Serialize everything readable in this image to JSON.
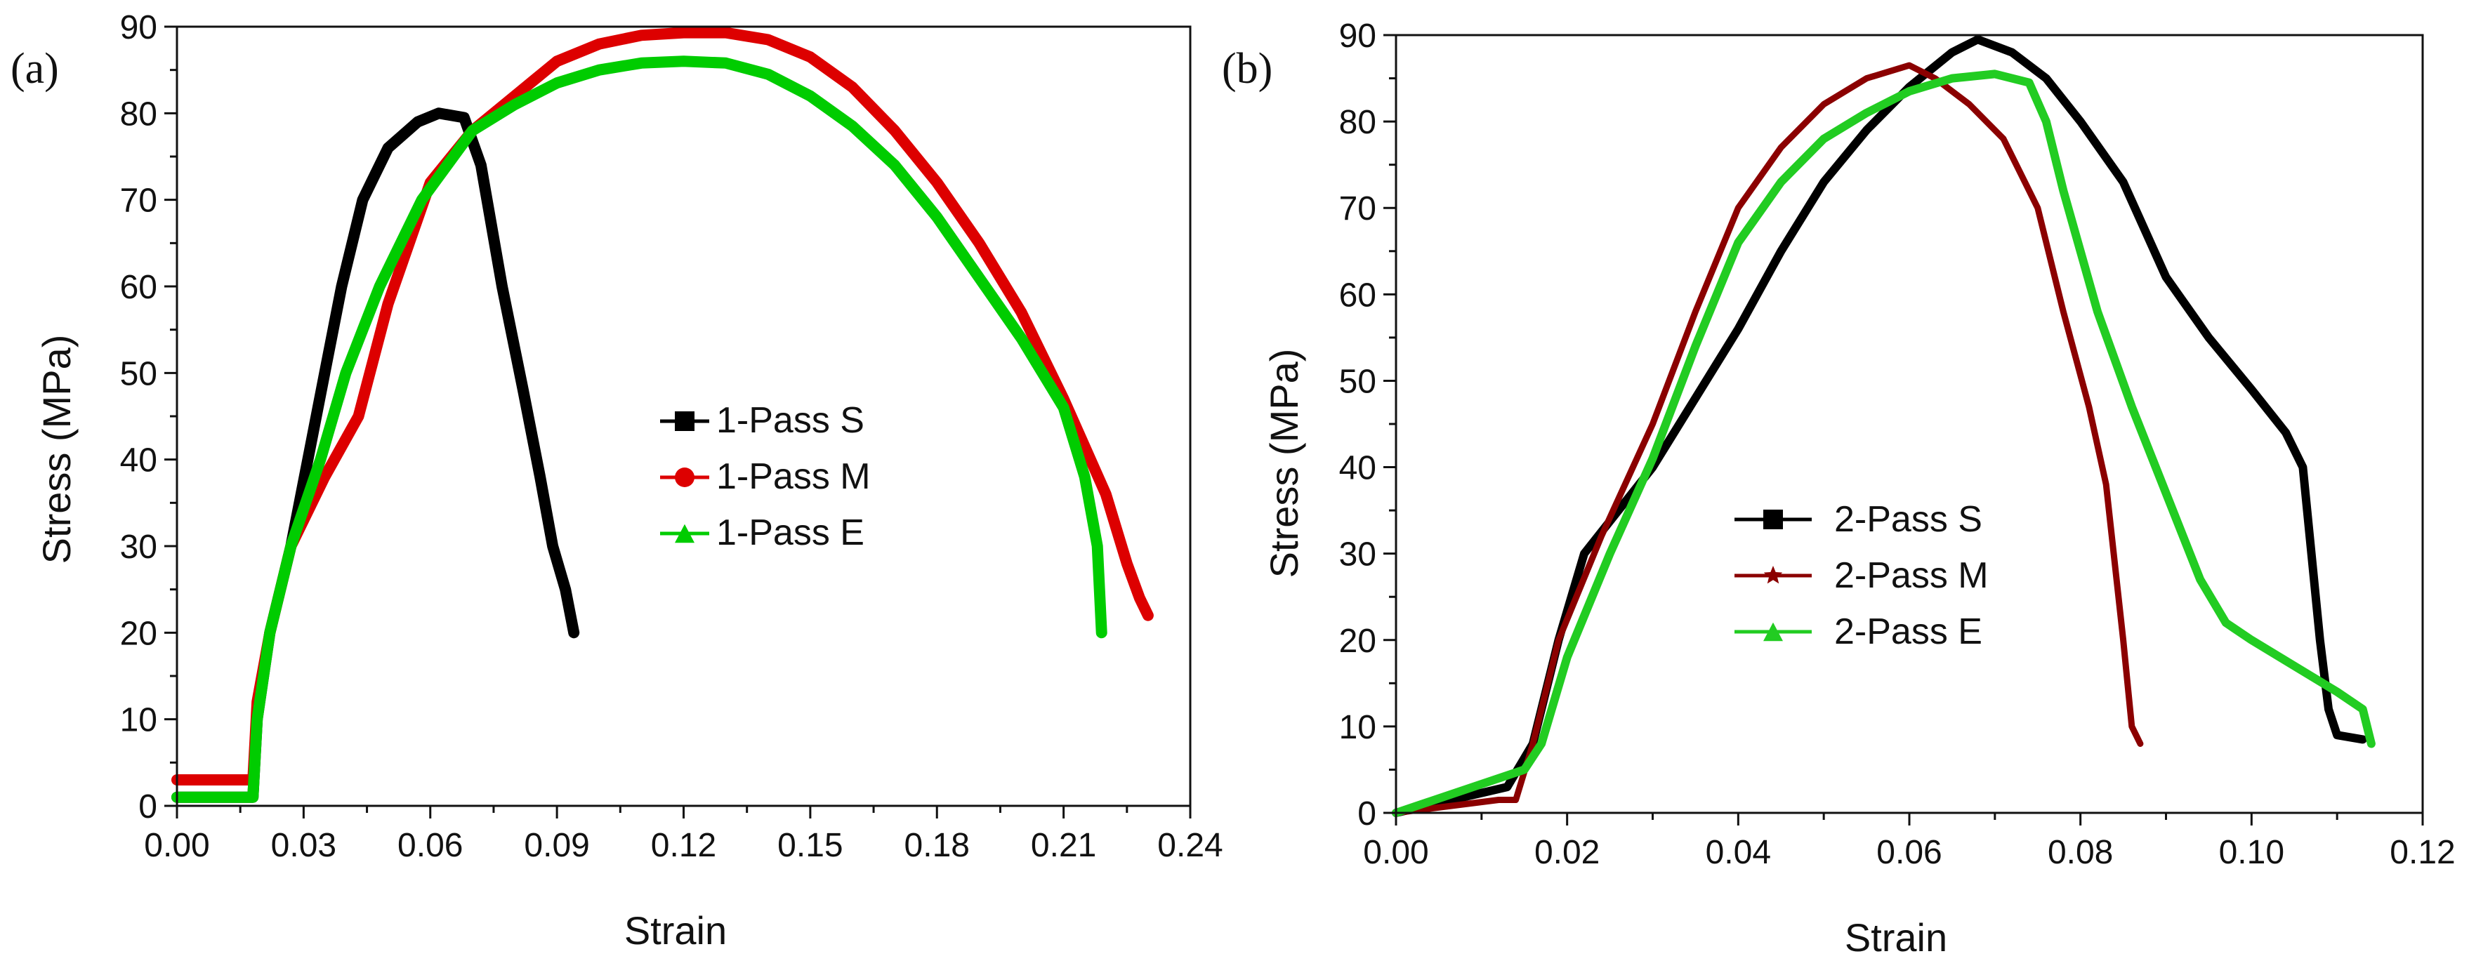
{
  "chart_data": [
    {
      "type": "line",
      "panel_label": "(a)",
      "xlabel": "Strain",
      "ylabel": "Stress (MPa)",
      "xlim": [
        0,
        0.24
      ],
      "ylim": [
        0,
        90
      ],
      "xticks": [
        "0.00",
        "0.03",
        "0.06",
        "0.09",
        "0.12",
        "0.15",
        "0.18",
        "0.21",
        "0.24"
      ],
      "yticks": [
        "0",
        "10",
        "20",
        "30",
        "40",
        "50",
        "60",
        "70",
        "80",
        "90"
      ],
      "legend_position": "center-right",
      "series": [
        {
          "name": "1-Pass S",
          "color": "#000000",
          "marker": "square",
          "points": [
            [
              0,
              1
            ],
            [
              0.018,
              1
            ],
            [
              0.019,
              10
            ],
            [
              0.022,
              20
            ],
            [
              0.027,
              30
            ],
            [
              0.031,
              40
            ],
            [
              0.035,
              50
            ],
            [
              0.039,
              60
            ],
            [
              0.044,
              70
            ],
            [
              0.05,
              76
            ],
            [
              0.057,
              79
            ],
            [
              0.062,
              80
            ],
            [
              0.068,
              79.5
            ],
            [
              0.072,
              74
            ],
            [
              0.077,
              60
            ],
            [
              0.082,
              48
            ],
            [
              0.086,
              38
            ],
            [
              0.089,
              30
            ],
            [
              0.092,
              25
            ],
            [
              0.094,
              20
            ]
          ]
        },
        {
          "name": "1-Pass M",
          "color": "#dd0000",
          "marker": "circle",
          "points": [
            [
              0,
              3
            ],
            [
              0.018,
              3
            ],
            [
              0.019,
              12
            ],
            [
              0.022,
              20
            ],
            [
              0.027,
              30
            ],
            [
              0.035,
              38
            ],
            [
              0.043,
              45
            ],
            [
              0.05,
              58
            ],
            [
              0.06,
              72
            ],
            [
              0.07,
              78
            ],
            [
              0.08,
              82
            ],
            [
              0.09,
              86
            ],
            [
              0.1,
              88
            ],
            [
              0.11,
              89
            ],
            [
              0.12,
              89.3
            ],
            [
              0.13,
              89.3
            ],
            [
              0.14,
              88.5
            ],
            [
              0.15,
              86.5
            ],
            [
              0.16,
              83
            ],
            [
              0.17,
              78
            ],
            [
              0.18,
              72
            ],
            [
              0.19,
              65
            ],
            [
              0.2,
              57
            ],
            [
              0.21,
              47
            ],
            [
              0.22,
              36
            ],
            [
              0.225,
              28
            ],
            [
              0.228,
              24
            ],
            [
              0.23,
              22
            ]
          ]
        },
        {
          "name": "1-Pass E",
          "color": "#00cc00",
          "marker": "triangle",
          "points": [
            [
              0,
              1
            ],
            [
              0.018,
              1
            ],
            [
              0.019,
              10
            ],
            [
              0.022,
              20
            ],
            [
              0.027,
              30
            ],
            [
              0.034,
              40
            ],
            [
              0.04,
              50
            ],
            [
              0.048,
              60
            ],
            [
              0.058,
              70
            ],
            [
              0.07,
              78
            ],
            [
              0.08,
              81
            ],
            [
              0.09,
              83.5
            ],
            [
              0.1,
              85
            ],
            [
              0.11,
              85.8
            ],
            [
              0.12,
              86
            ],
            [
              0.13,
              85.8
            ],
            [
              0.14,
              84.5
            ],
            [
              0.15,
              82
            ],
            [
              0.16,
              78.5
            ],
            [
              0.17,
              74
            ],
            [
              0.18,
              68
            ],
            [
              0.19,
              61
            ],
            [
              0.2,
              54
            ],
            [
              0.21,
              46
            ],
            [
              0.215,
              38
            ],
            [
              0.218,
              30
            ],
            [
              0.219,
              20
            ]
          ]
        }
      ]
    },
    {
      "type": "line",
      "panel_label": "(b)",
      "xlabel": "Strain",
      "ylabel": "Stress (MPa)",
      "xlim": [
        0,
        0.12
      ],
      "ylim": [
        0,
        90
      ],
      "xticks": [
        "0.00",
        "0.02",
        "0.04",
        "0.06",
        "0.08",
        "0.10",
        "0.12"
      ],
      "yticks": [
        "0",
        "10",
        "20",
        "30",
        "40",
        "50",
        "60",
        "70",
        "80",
        "90"
      ],
      "legend_position": "bottom-center",
      "series": [
        {
          "name": "2-Pass S",
          "color": "#000000",
          "marker": "square",
          "points": [
            [
              0,
              0
            ],
            [
              0.013,
              3
            ],
            [
              0.016,
              8
            ],
            [
              0.019,
              20
            ],
            [
              0.022,
              30
            ],
            [
              0.03,
              40
            ],
            [
              0.035,
              48
            ],
            [
              0.04,
              56
            ],
            [
              0.045,
              65
            ],
            [
              0.05,
              73
            ],
            [
              0.055,
              79
            ],
            [
              0.06,
              84
            ],
            [
              0.065,
              88
            ],
            [
              0.068,
              89.5
            ],
            [
              0.072,
              88
            ],
            [
              0.076,
              85
            ],
            [
              0.08,
              80
            ],
            [
              0.085,
              73
            ],
            [
              0.09,
              62
            ],
            [
              0.095,
              55
            ],
            [
              0.1,
              49
            ],
            [
              0.104,
              44
            ],
            [
              0.106,
              40
            ],
            [
              0.107,
              30
            ],
            [
              0.108,
              20
            ],
            [
              0.109,
              12
            ],
            [
              0.11,
              9
            ],
            [
              0.113,
              8.5
            ]
          ]
        },
        {
          "name": "2-Pass M",
          "color": "#8b0000",
          "marker": "star",
          "points": [
            [
              0,
              0
            ],
            [
              0.012,
              1.5
            ],
            [
              0.014,
              1.5
            ],
            [
              0.016,
              8
            ],
            [
              0.019,
              20
            ],
            [
              0.024,
              32
            ],
            [
              0.03,
              45
            ],
            [
              0.035,
              58
            ],
            [
              0.04,
              70
            ],
            [
              0.045,
              77
            ],
            [
              0.05,
              82
            ],
            [
              0.055,
              85
            ],
            [
              0.06,
              86.5
            ],
            [
              0.063,
              85
            ],
            [
              0.067,
              82
            ],
            [
              0.071,
              78
            ],
            [
              0.075,
              70
            ],
            [
              0.078,
              58
            ],
            [
              0.081,
              47
            ],
            [
              0.083,
              38
            ],
            [
              0.085,
              20
            ],
            [
              0.086,
              10
            ],
            [
              0.087,
              8
            ]
          ]
        },
        {
          "name": "2-Pass E",
          "color": "#22cc22",
          "marker": "triangle",
          "points": [
            [
              0,
              0
            ],
            [
              0.015,
              5
            ],
            [
              0.017,
              8
            ],
            [
              0.02,
              18
            ],
            [
              0.025,
              30
            ],
            [
              0.03,
              41
            ],
            [
              0.035,
              54
            ],
            [
              0.04,
              66
            ],
            [
              0.045,
              73
            ],
            [
              0.05,
              78
            ],
            [
              0.055,
              81
            ],
            [
              0.06,
              83.5
            ],
            [
              0.065,
              85
            ],
            [
              0.07,
              85.5
            ],
            [
              0.074,
              84.5
            ],
            [
              0.076,
              80
            ],
            [
              0.078,
              72
            ],
            [
              0.082,
              58
            ],
            [
              0.086,
              47
            ],
            [
              0.09,
              37
            ],
            [
              0.094,
              27
            ],
            [
              0.097,
              22
            ],
            [
              0.1,
              20
            ],
            [
              0.105,
              17
            ],
            [
              0.11,
              14
            ],
            [
              0.113,
              12
            ],
            [
              0.114,
              8
            ]
          ]
        }
      ]
    }
  ]
}
